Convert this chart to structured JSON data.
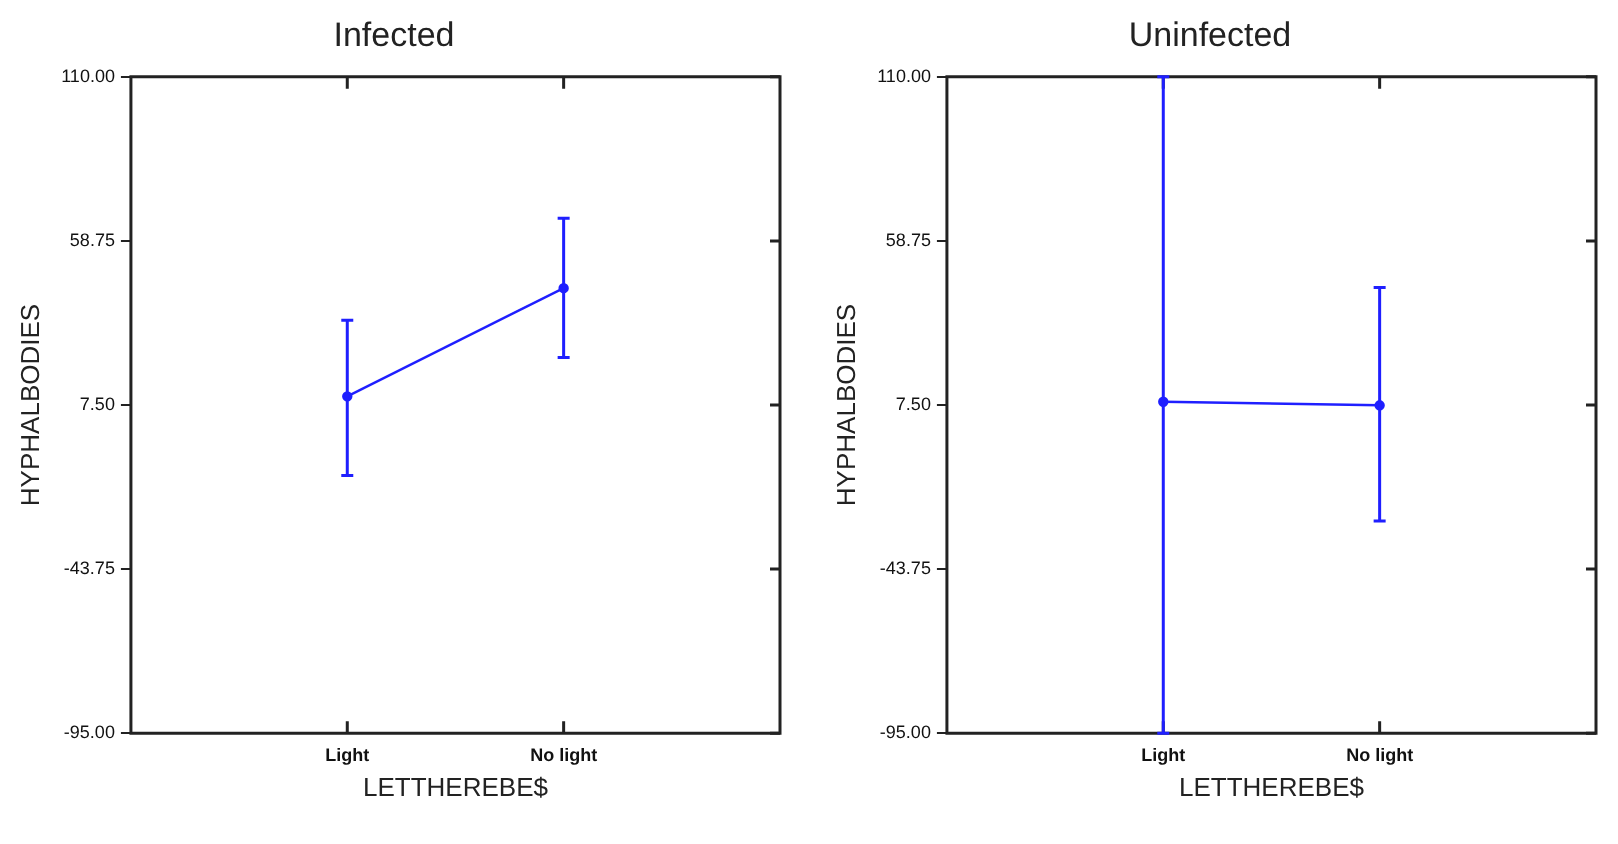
{
  "chart_data": [
    {
      "type": "line",
      "title": "Infected",
      "xlabel": "LETTHEREBE$",
      "ylabel": "HYPHALBODIES",
      "categories": [
        "Light",
        "No light"
      ],
      "series": [
        {
          "color": "#1f1fff",
          "values": [
            10.2,
            44
          ],
          "errors": [
            [
              -14.5,
              34
            ],
            [
              22.3,
              65.8
            ]
          ]
        }
      ],
      "ylim": [
        -95,
        110
      ],
      "yticks": [
        {
          "value": -95,
          "label": "-95.00"
        },
        {
          "value": -43.75,
          "label": "-43.75"
        },
        {
          "value": 7.5,
          "label": "7.50"
        },
        {
          "value": 58.75,
          "label": "58.75"
        },
        {
          "value": 110,
          "label": "110.00"
        }
      ],
      "grid": false,
      "legend": false,
      "marker": "circle",
      "line_style": "solid"
    },
    {
      "type": "line",
      "title": "Uninfected",
      "xlabel": "LETTHEREBE$",
      "ylabel": "HYPHALBODIES",
      "categories": [
        "Light",
        "No light"
      ],
      "series": [
        {
          "color": "#1f1fff",
          "values": [
            8.5,
            7.4
          ],
          "errors": [
            [
              -95,
              110
            ],
            [
              -28.7,
              44.2
            ]
          ]
        }
      ],
      "ylim": [
        -95,
        110
      ],
      "yticks": [
        {
          "value": -95,
          "label": "-95.00"
        },
        {
          "value": -43.75,
          "label": "-43.75"
        },
        {
          "value": 7.5,
          "label": "7.50"
        },
        {
          "value": 58.75,
          "label": "58.75"
        },
        {
          "value": 110,
          "label": "110.00"
        }
      ],
      "grid": false,
      "legend": false,
      "marker": "circle",
      "line_style": "solid"
    }
  ]
}
